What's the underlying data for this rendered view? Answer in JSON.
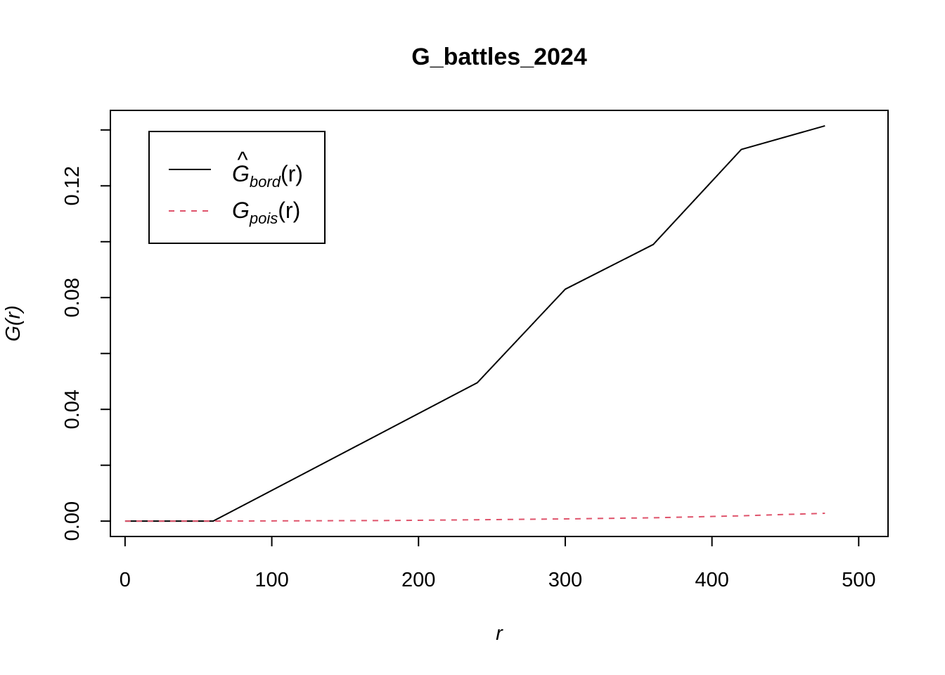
{
  "chart_data": {
    "type": "line",
    "title": "G_battles_2024",
    "xlabel": "r",
    "ylabel": "G(r)",
    "xlim": [
      -10,
      520
    ],
    "ylim": [
      -0.0055,
      0.147
    ],
    "x_ticks": [
      0,
      100,
      200,
      300,
      400,
      500
    ],
    "x_tick_labels": [
      "0",
      "100",
      "200",
      "300",
      "400",
      "500"
    ],
    "y_ticks": [
      0,
      0.02,
      0.04,
      0.06,
      0.08,
      0.1,
      0.12,
      0.14
    ],
    "y_tick_labels": [
      "0.00",
      "",
      "0.04",
      "",
      "0.08",
      "",
      "0.12",
      ""
    ],
    "grid": false,
    "legend_position": "top-left",
    "series": [
      {
        "name": "Ĝbord(r)",
        "legend_main": "G",
        "legend_sub": "bord",
        "legend_arg": "(r)",
        "legend_hat": "^",
        "color": "#000000",
        "dash": "solid",
        "x": [
          0,
          60,
          120,
          180,
          240,
          300,
          360,
          420,
          477
        ],
        "y": [
          0,
          0,
          0.0165,
          0.033,
          0.0495,
          0.083,
          0.099,
          0.133,
          0.1415
        ]
      },
      {
        "name": "Gpois(r)",
        "legend_main": "G",
        "legend_sub": "pois",
        "legend_arg": "(r)",
        "legend_hat": "",
        "color": "#DF536B",
        "dash": "dashed",
        "x": [
          0,
          60,
          120,
          180,
          240,
          300,
          360,
          420,
          477
        ],
        "y": [
          0,
          2e-05,
          0.0001,
          0.0002,
          0.0005,
          0.0008,
          0.0012,
          0.0019,
          0.0028
        ]
      }
    ]
  }
}
